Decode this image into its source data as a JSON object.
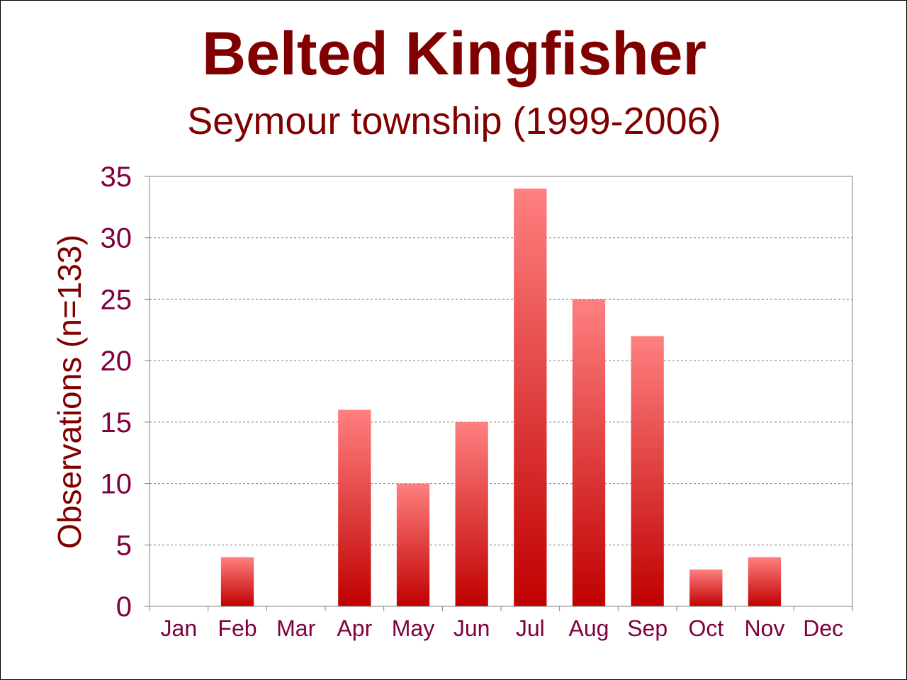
{
  "chart_data": {
    "type": "bar",
    "title": "Belted Kingfisher",
    "subtitle": "Seymour township (1999-2006)",
    "xlabel": "",
    "ylabel": "Observations (n=133)",
    "ylim": [
      0,
      35
    ],
    "yticks": [
      "0",
      "5",
      "10",
      "15",
      "20",
      "25",
      "30",
      "35"
    ],
    "categories": [
      "Jan",
      "Feb",
      "Mar",
      "Apr",
      "May",
      "Jun",
      "Jul",
      "Aug",
      "Sep",
      "Oct",
      "Nov",
      "Dec"
    ],
    "values": [
      0,
      4,
      0,
      16,
      10,
      15,
      34,
      25,
      22,
      3,
      4,
      0
    ],
    "grid": true,
    "legend": "none",
    "colors": {
      "bar_top": "#ff8080",
      "bar_bottom": "#c00000",
      "title": "#800000",
      "ticks": "#800040"
    }
  }
}
